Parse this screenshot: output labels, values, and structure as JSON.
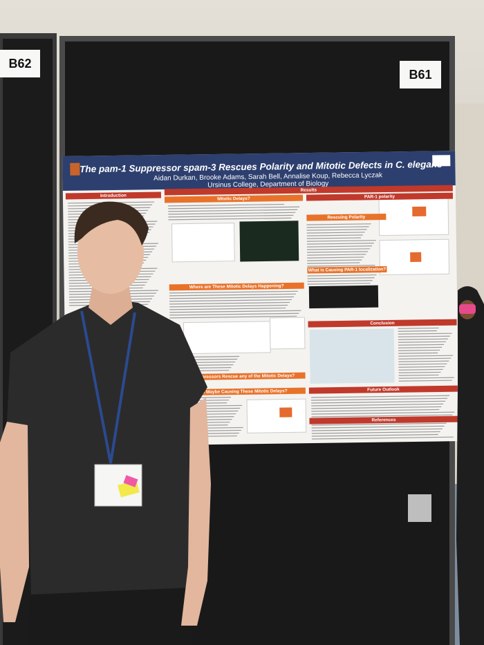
{
  "booth_labels": [
    "B62",
    "B61"
  ],
  "poster": {
    "title": "The pam-1 Suppressor spam-3 Rescues Polarity and Mitotic Defects in C. elegans",
    "authors": "Aidan Durkan, Brooke Adams, Sarah Bell, Annalise Koup, Rebecca Lyczak",
    "affiliation": "Ursinus College, Department of Biology",
    "sections": [
      "Introduction",
      "Results",
      "Mitotic Delays?",
      "PAR-1 polarity",
      "Rescuing Polarity",
      "Where are These Mitotic Delays Happening?",
      "What is Causing PAR-1 localization?",
      "Conclusion",
      "Does Suppressors Rescue any of the Mitotic Delays?",
      "What is Maybe Causing These Mitotic Delays?",
      "Future Outlook",
      "References"
    ]
  }
}
